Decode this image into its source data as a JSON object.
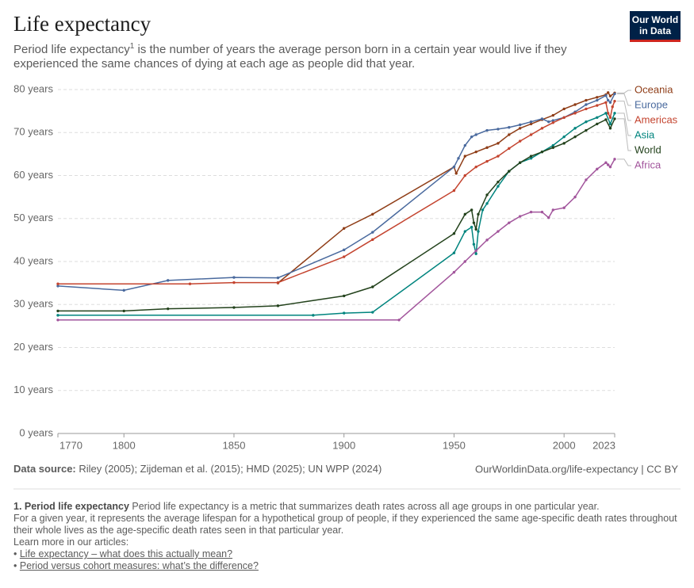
{
  "chart_data": {
    "type": "line",
    "title": "Life expectancy",
    "subtitle_term": "Period life expectancy",
    "subtitle_ref": "1",
    "subtitle_line1_rest": " is the number of years the average person born in a certain year would live if they",
    "subtitle_line2": "experienced the same chances of dying at each age as people did that year.",
    "logo": [
      "Our World",
      "in Data"
    ],
    "xlim": [
      1770,
      2023
    ],
    "xticks": [
      1770,
      1800,
      1850,
      1900,
      1950,
      2000,
      2023
    ],
    "ylim": [
      0,
      80
    ],
    "yticks": [
      {
        "value": 0,
        "label": "0 years"
      },
      {
        "value": 10,
        "label": "10 years"
      },
      {
        "value": 20,
        "label": "20 years"
      },
      {
        "value": 30,
        "label": "30 years"
      },
      {
        "value": 40,
        "label": "40 years"
      },
      {
        "value": 50,
        "label": "50 years"
      },
      {
        "value": 60,
        "label": "60 years"
      },
      {
        "value": 70,
        "label": "70 years"
      },
      {
        "value": 80,
        "label": "80 years"
      }
    ],
    "grid": true,
    "series": [
      {
        "name": "Oceania",
        "color": "#8f3d17",
        "x": [
          1870,
          1900,
          1913,
          1950,
          1951,
          1955,
          1960,
          1965,
          1970,
          1975,
          1980,
          1985,
          1990,
          1995,
          2000,
          2005,
          2010,
          2015,
          2019,
          2020,
          2021,
          2023
        ],
        "values": [
          35,
          47.7,
          51,
          62,
          60.5,
          64.5,
          65.5,
          66.5,
          67.5,
          69.5,
          71,
          72,
          73,
          74,
          75.5,
          76.5,
          77.5,
          78.2,
          78.8,
          79.3,
          78.5,
          79.2
        ]
      },
      {
        "name": "Europe",
        "color": "#4a6a9e",
        "x": [
          1770,
          1800,
          1820,
          1850,
          1870,
          1900,
          1913,
          1950,
          1952,
          1955,
          1958,
          1960,
          1965,
          1970,
          1975,
          1980,
          1985,
          1990,
          1993,
          1995,
          2000,
          2005,
          2010,
          2015,
          2019,
          2020,
          2021,
          2023
        ],
        "values": [
          34.3,
          33.3,
          35.6,
          36.3,
          36.2,
          42.7,
          46.8,
          62,
          64,
          67,
          69,
          69.5,
          70.5,
          70.8,
          71.2,
          71.8,
          72.5,
          73.2,
          72.5,
          72.8,
          73.5,
          74.8,
          76.5,
          77.5,
          78.6,
          77.5,
          77,
          79
        ]
      },
      {
        "name": "Americas",
        "color": "#c4442f",
        "x": [
          1770,
          1830,
          1850,
          1870,
          1900,
          1913,
          1950,
          1955,
          1960,
          1965,
          1970,
          1975,
          1980,
          1985,
          1990,
          1995,
          2000,
          2005,
          2010,
          2015,
          2019,
          2020,
          2021,
          2022,
          2023
        ],
        "values": [
          34.8,
          34.8,
          35.1,
          35.1,
          41.1,
          45.1,
          56.5,
          60,
          62,
          63.3,
          64.5,
          66.3,
          68,
          69.5,
          71,
          72.3,
          73.5,
          74.5,
          75.5,
          76.3,
          77,
          74.5,
          73.5,
          76,
          77.3
        ]
      },
      {
        "name": "Asia",
        "color": "#00847e",
        "x": [
          1770,
          1886,
          1900,
          1913,
          1950,
          1955,
          1958,
          1959,
          1960,
          1961,
          1963,
          1965,
          1970,
          1975,
          1980,
          1985,
          1990,
          1995,
          2000,
          2005,
          2010,
          2015,
          2019,
          2021,
          2023
        ],
        "values": [
          27.5,
          27.5,
          28,
          28.2,
          42,
          47,
          48,
          44,
          41.8,
          47,
          52,
          53.5,
          57.5,
          61,
          63,
          64,
          65.5,
          67,
          69,
          71,
          72.5,
          73.5,
          74.5,
          72,
          74.5
        ]
      },
      {
        "name": "World",
        "color": "#23421c",
        "x": [
          1770,
          1800,
          1820,
          1850,
          1870,
          1900,
          1913,
          1950,
          1955,
          1958,
          1959,
          1960,
          1961,
          1965,
          1970,
          1975,
          1980,
          1985,
          1990,
          1995,
          2000,
          2005,
          2010,
          2015,
          2019,
          2021,
          2023
        ],
        "values": [
          28.5,
          28.5,
          29,
          29.3,
          29.7,
          32,
          34.1,
          46.5,
          51,
          52,
          49,
          47.5,
          51,
          55.5,
          58.5,
          61,
          63,
          64.5,
          65.5,
          66.5,
          67.5,
          69,
          70.5,
          72,
          73,
          71,
          73.2
        ]
      },
      {
        "name": "Africa",
        "color": "#a2559c",
        "x": [
          1770,
          1925,
          1950,
          1955,
          1960,
          1965,
          1970,
          1975,
          1980,
          1985,
          1990,
          1993,
          1995,
          2000,
          2005,
          2010,
          2015,
          2019,
          2020,
          2021,
          2023
        ],
        "values": [
          26.4,
          26.4,
          37.5,
          40,
          42.5,
          45,
          47,
          49,
          50.5,
          51.5,
          51.5,
          50.2,
          52,
          52.5,
          55,
          59,
          61.5,
          63,
          62.5,
          62,
          63.8
        ]
      }
    ],
    "source_label": "Data source:",
    "source_text": " Riley (2005); Zijdeman et al. (2015); HMD (2025); UN WPP (2024)",
    "url_license": "OurWorldinData.org/life-expectancy | CC BY"
  },
  "note": {
    "heading": "1. Period life expectancy",
    "line1": " Period life expectancy is a metric that summarizes death rates across all age groups in one particular year.",
    "line2": "For a given year, it represents the average lifespan for a hypothetical group of people, if they experienced the same age-specific death rates throughout their whole lives as the age-specific death rates seen in that particular year.",
    "learn_more": "Learn more in our articles:",
    "links": [
      "Life expectancy – what does this actually mean?",
      "Period versus cohort measures: what’s the difference?"
    ]
  }
}
